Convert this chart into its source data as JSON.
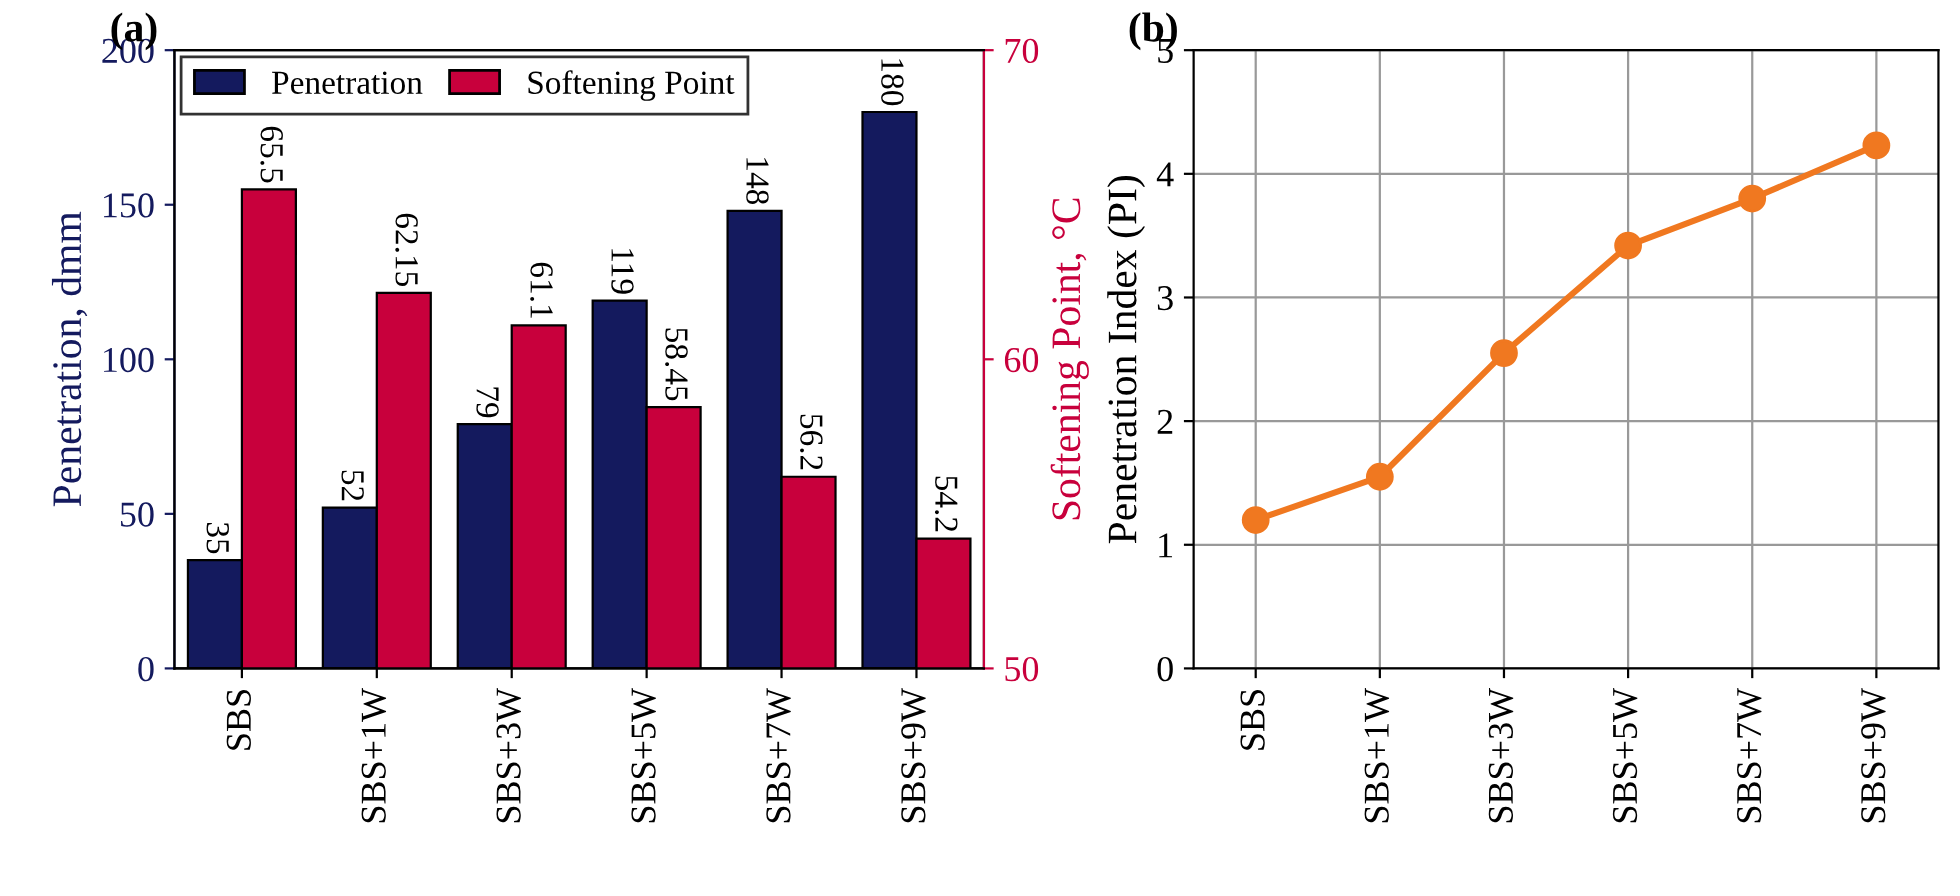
{
  "chart_data": [
    {
      "type": "bar",
      "title": "(a)",
      "categories": [
        "SBS",
        "SBS+1W",
        "SBS+3W",
        "SBS+5W",
        "SBS+7W",
        "SBS+9W"
      ],
      "series": [
        {
          "name": "Penetration",
          "color": "#141a5e",
          "values": [
            35,
            52,
            79,
            119,
            148,
            180
          ]
        },
        {
          "name": "Softening Point",
          "color": "#c8003c",
          "axis": "y2",
          "values": [
            65.5,
            62.15,
            61.1,
            58.45,
            56.2,
            54.2
          ]
        }
      ],
      "ylabel": "Penetration, dmm",
      "y2label": "Softening Point, °C",
      "ylim": [
        0,
        200
      ],
      "yticks": [
        0,
        50,
        100,
        150,
        200
      ],
      "y2lim": [
        50,
        70
      ],
      "y2ticks": [
        50,
        60,
        70
      ],
      "data_labels": true,
      "legend": "top left",
      "grid": false
    },
    {
      "type": "line",
      "title": "(b)",
      "categories": [
        "SBS",
        "SBS+1W",
        "SBS+3W",
        "SBS+5W",
        "SBS+7W",
        "SBS+9W"
      ],
      "series": [
        {
          "color": "#f07820",
          "values": [
            1.2,
            1.55,
            2.55,
            3.42,
            3.8,
            4.23
          ]
        }
      ],
      "ylabel": "Penetration Index (PI)",
      "ylim": [
        0,
        5
      ],
      "yticks": [
        0,
        1,
        2,
        3,
        4,
        5
      ],
      "marker": "circle",
      "line_style": "solid",
      "grid": true,
      "legend": false
    }
  ]
}
